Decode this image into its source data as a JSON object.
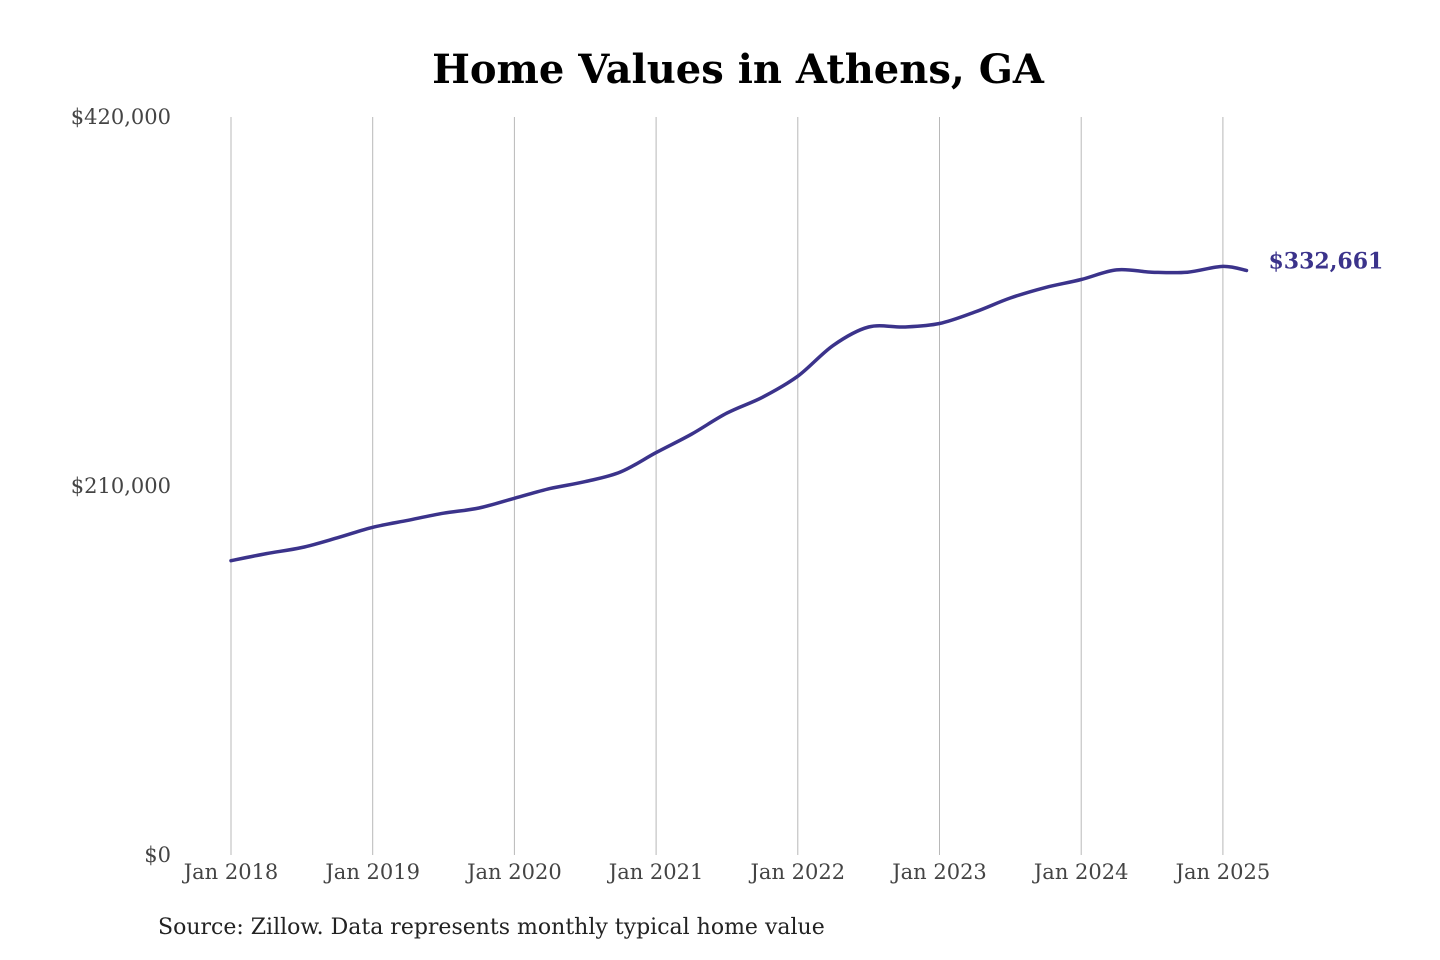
{
  "colors": {
    "series": "#3b338b",
    "grid": "#b8b8b8",
    "tick_text": "#444444",
    "title_text": "#000000"
  },
  "source_note": "Source: Zillow. Data represents monthly typical home value",
  "chart_data": {
    "type": "line",
    "title": "Home Values in Athens, GA",
    "xlabel": "",
    "ylabel": "",
    "ylim": [
      0,
      420000
    ],
    "y_ticks": [
      {
        "value": 0,
        "label": "$0"
      },
      {
        "value": 210000,
        "label": "$210,000"
      },
      {
        "value": 420000,
        "label": "$420,000"
      }
    ],
    "x_ticks": [
      {
        "value": "2018-01",
        "label": "Jan 2018"
      },
      {
        "value": "2019-01",
        "label": "Jan 2019"
      },
      {
        "value": "2020-01",
        "label": "Jan 2020"
      },
      {
        "value": "2021-01",
        "label": "Jan 2021"
      },
      {
        "value": "2022-01",
        "label": "Jan 2022"
      },
      {
        "value": "2023-01",
        "label": "Jan 2023"
      },
      {
        "value": "2024-01",
        "label": "Jan 2024"
      },
      {
        "value": "2025-01",
        "label": "Jan 2025"
      }
    ],
    "grid": {
      "vertical": true,
      "horizontal": false
    },
    "end_label": "$332,661",
    "series": [
      {
        "x": [
          "2018-01",
          "2018-04",
          "2018-07",
          "2018-10",
          "2019-01",
          "2019-04",
          "2019-07",
          "2019-10",
          "2020-01",
          "2020-04",
          "2020-07",
          "2020-10",
          "2021-01",
          "2021-04",
          "2021-07",
          "2021-10",
          "2022-01",
          "2022-04",
          "2022-07",
          "2022-10",
          "2023-01",
          "2023-04",
          "2023-07",
          "2023-10",
          "2024-01",
          "2024-04",
          "2024-07",
          "2024-10",
          "2025-01",
          "2025-03"
        ],
        "values": [
          167500,
          171500,
          175000,
          180500,
          186500,
          190500,
          194500,
          197500,
          203000,
          208500,
          212500,
          218000,
          229000,
          239500,
          251500,
          260500,
          272500,
          290000,
          300500,
          300500,
          302500,
          309000,
          317000,
          323000,
          327500,
          333000,
          331700,
          331700,
          335000,
          332661
        ]
      }
    ]
  }
}
